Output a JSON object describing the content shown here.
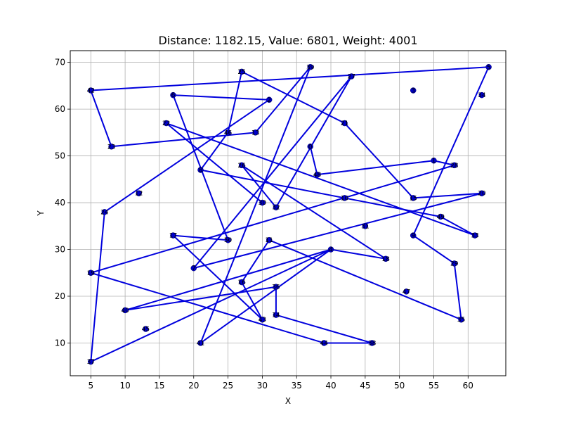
{
  "chart_data": {
    "type": "scatter",
    "title": "Distance: 1182.15, Value: 6801, Weight: 4001",
    "xlabel": "X",
    "ylabel": "Y",
    "xlim": [
      2,
      65.5
    ],
    "ylim": [
      3,
      72.5
    ],
    "xticks": [
      5,
      10,
      15,
      20,
      25,
      30,
      35,
      40,
      45,
      50,
      55,
      60
    ],
    "yticks": [
      10,
      20,
      30,
      40,
      50,
      60,
      70
    ],
    "grid": true,
    "colors": {
      "route": "#0000dd",
      "node": "#0000cc",
      "start": "#008000",
      "end": "#ff0000"
    },
    "points": [
      {
        "label": "0",
        "x": 37,
        "y": 52
      },
      {
        "label": "1",
        "x": 55,
        "y": 49
      },
      {
        "label": "2",
        "x": 31,
        "y": 62
      },
      {
        "label": "3",
        "x": 52,
        "y": 64
      },
      {
        "label": "4",
        "x": 40,
        "y": 30
      },
      {
        "label": "5",
        "x": 63,
        "y": 69
      },
      {
        "label": "6",
        "x": 17,
        "y": 63
      },
      {
        "label": "7",
        "x": 20,
        "y": 26
      },
      {
        "label": "8",
        "x": 21,
        "y": 47
      },
      {
        "label": "9",
        "x": 52,
        "y": 33
      },
      {
        "label": "10",
        "x": 42,
        "y": 41
      },
      {
        "label": "11",
        "x": 31,
        "y": 32
      },
      {
        "label": "12",
        "x": 12,
        "y": 42
      },
      {
        "label": "13",
        "x": 29,
        "y": 55
      },
      {
        "label": "14",
        "x": 32,
        "y": 16
      },
      {
        "label": "15",
        "x": 52,
        "y": 41
      },
      {
        "label": "16",
        "x": 27,
        "y": 23
      },
      {
        "label": "17",
        "x": 17,
        "y": 33
      },
      {
        "label": "18",
        "x": 48,
        "y": 28
      },
      {
        "label": "19",
        "x": 5,
        "y": 25
      },
      {
        "label": "20",
        "x": 62,
        "y": 42
      },
      {
        "label": "21",
        "x": 42,
        "y": 57
      },
      {
        "label": "22",
        "x": 16,
        "y": 57
      },
      {
        "label": "23",
        "x": 8,
        "y": 52
      },
      {
        "label": "24",
        "x": 7,
        "y": 38
      },
      {
        "label": "25",
        "x": 27,
        "y": 68
      },
      {
        "label": "26",
        "x": 27,
        "y": 48
      },
      {
        "label": "27",
        "x": 43,
        "y": 67
      },
      {
        "label": "28",
        "x": 58,
        "y": 48
      },
      {
        "label": "29",
        "x": 58,
        "y": 27
      },
      {
        "label": "30",
        "x": 30,
        "y": 40
      },
      {
        "label": "31",
        "x": 45,
        "y": 35
      },
      {
        "label": "32",
        "x": 32,
        "y": 39
      },
      {
        "label": "33",
        "x": 61,
        "y": 33
      },
      {
        "label": "34",
        "x": 62,
        "y": 63
      },
      {
        "label": "35",
        "x": 59,
        "y": 15
      },
      {
        "label": "36",
        "x": 32,
        "y": 22
      },
      {
        "label": "37",
        "x": 5,
        "y": 6
      },
      {
        "label": "38",
        "x": 46,
        "y": 10
      },
      {
        "label": "39",
        "x": 37,
        "y": 69
      },
      {
        "label": "40",
        "x": 10,
        "y": 17
      },
      {
        "label": "41",
        "x": 21,
        "y": 10
      },
      {
        "label": "42",
        "x": 5,
        "y": 64
      },
      {
        "label": "43",
        "x": 30,
        "y": 15
      },
      {
        "label": "44",
        "x": 39,
        "y": 10
      },
      {
        "label": "45",
        "x": 13,
        "y": 13
      },
      {
        "label": "46",
        "x": 25,
        "y": 55
      },
      {
        "label": "47",
        "x": 51,
        "y": 21
      },
      {
        "label": "48",
        "x": 38,
        "y": 46
      },
      {
        "label": "49",
        "x": 56,
        "y": 37
      },
      {
        "label": "50",
        "x": 25,
        "y": 32
      }
    ],
    "route": [
      "0",
      "48",
      "1",
      "28",
      "19",
      "44",
      "38",
      "14",
      "36",
      "40",
      "4",
      "37",
      "24",
      "2",
      "6",
      "50",
      "17",
      "43",
      "16",
      "11",
      "35",
      "29",
      "9",
      "5",
      "42",
      "23",
      "13",
      "39",
      "41",
      "4",
      "18",
      "26",
      "32",
      "27",
      "7",
      "20",
      "15",
      "21",
      "25",
      "46",
      "8",
      "49",
      "33",
      "22",
      "30"
    ],
    "start": "0",
    "end": "30"
  }
}
